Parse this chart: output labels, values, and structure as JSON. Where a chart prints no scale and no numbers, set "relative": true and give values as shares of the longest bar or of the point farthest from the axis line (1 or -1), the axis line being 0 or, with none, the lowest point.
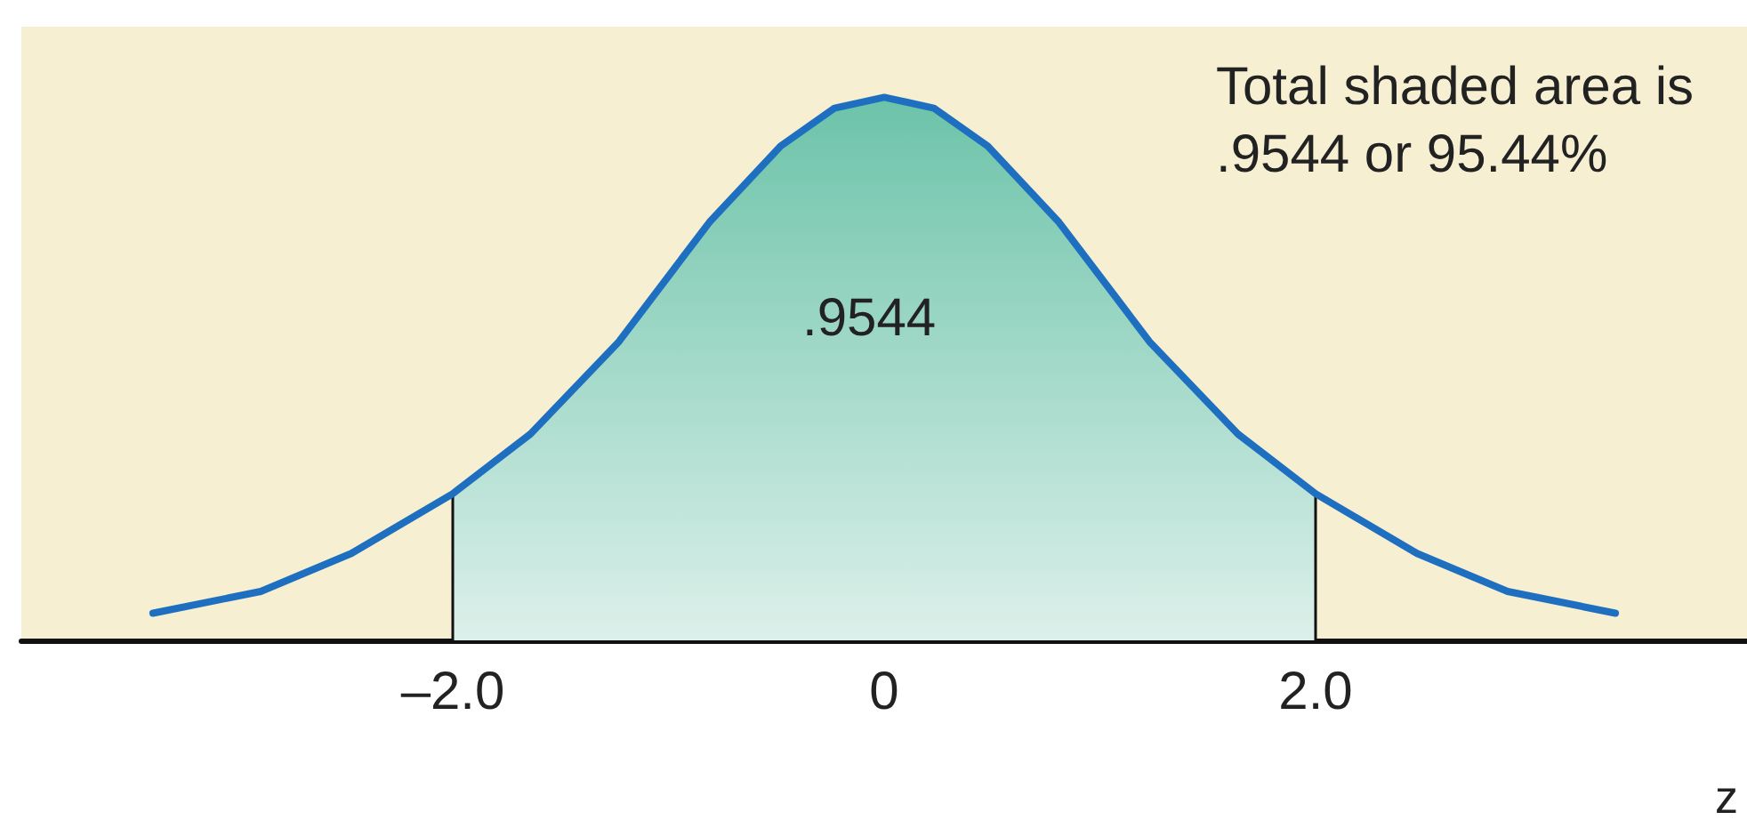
{
  "chart_data": {
    "type": "line",
    "relative": true,
    "xlabel": "z",
    "x": [
      -3.39,
      -2.89,
      -2.47,
      -2.0,
      -1.64,
      -1.23,
      -0.81,
      -0.48,
      -0.23,
      0,
      0.23,
      0.48,
      0.81,
      1.23,
      1.64,
      2.0,
      2.47,
      2.89,
      3.39
    ],
    "series": [
      {
        "color": "#1f6fc0",
        "values": [
          0.05,
          0.09,
          0.16,
          0.27,
          0.38,
          0.55,
          0.77,
          0.91,
          0.98,
          1,
          0.98,
          0.91,
          0.77,
          0.55,
          0.38,
          0.27,
          0.16,
          0.09,
          0.05
        ]
      },
      {
        "type": "area",
        "color": "#6cc3a9",
        "x": [
          -2.0,
          -2.0,
          -1.64,
          -1.23,
          -0.81,
          -0.48,
          -0.23,
          0,
          0.23,
          0.48,
          0.81,
          1.23,
          1.64,
          2.0,
          2.0
        ],
        "values": [
          0,
          0.27,
          0.38,
          0.55,
          0.77,
          0.91,
          0.98,
          1,
          0.98,
          0.91,
          0.77,
          0.55,
          0.38,
          0.27,
          0
        ]
      }
    ],
    "xlim": [
      -4,
      4
    ],
    "xticks": [
      {
        "value": -2,
        "label": "–2.0"
      },
      0,
      {
        "value": 2,
        "label": "2.0"
      }
    ],
    "annotations": [
      "Total shaded area is\n.9544 or 95.44%",
      ".9544"
    ],
    "grid": false,
    "marker": "none",
    "line_style": "solid"
  }
}
